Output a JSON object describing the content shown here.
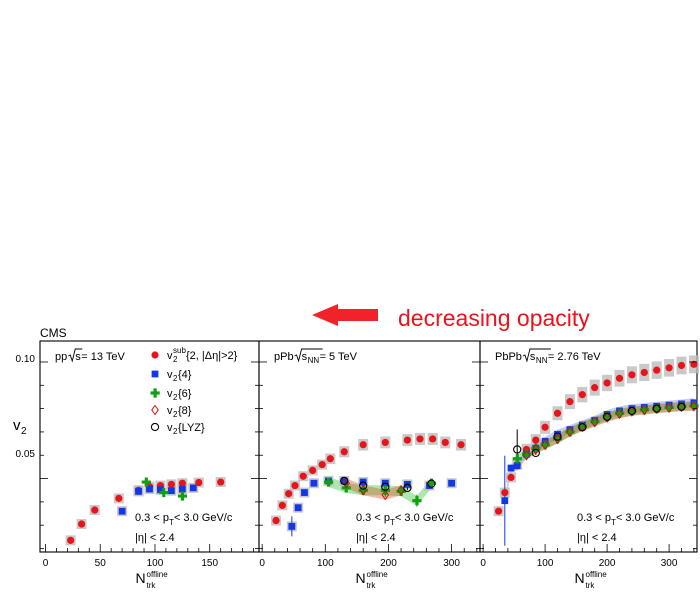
{
  "annotation": {
    "text": "decreasing opacity",
    "arrow_color": "#f2222a"
  },
  "experiment": "CMS",
  "ylabel_main": "v",
  "ylabel_sub": "2",
  "yticks": [
    "0.10",
    "0.05"
  ],
  "xlabel": {
    "main": "N",
    "sup": "offline",
    "sub": "trk"
  },
  "colors": {
    "subevent": "#e8141b",
    "v2_4": "#1437e6",
    "v2_6": "#12a012",
    "v2_8": "#cc1010",
    "lyz": "#000000",
    "syst": "#bbbbbb"
  },
  "legend": {
    "subevent": {
      "v": "v",
      "sub_2": "2",
      "sup": "sub",
      "rest": "{2, |Δη|>2}"
    },
    "v2_4": {
      "v": "v",
      "sub_2": "2",
      "rest": "{4}"
    },
    "v2_6": {
      "v": "v",
      "sub_2": "2",
      "rest": "{6}"
    },
    "v2_8": {
      "v": "v",
      "sub_2": "2",
      "rest": "{8}"
    },
    "lyz": {
      "v": "v",
      "sub_2": "2",
      "rest": "{LYZ}"
    }
  },
  "cuts": {
    "pt": "0.3 < p",
    "pt_sub": "T",
    "pt_rest": " < 3.0 GeV/c",
    "eta": "|η| < 2.4"
  },
  "chart_data": [
    {
      "type": "scatter",
      "system": "pp",
      "energy_label": {
        "pre": "pp ",
        "sqrt": "s",
        "sub": "",
        "post": " = 13 TeV"
      },
      "xlim": [
        -5,
        195
      ],
      "ylim": [
        0.0185,
        0.109
      ],
      "xticks": [
        "0",
        "50",
        "100",
        "150"
      ],
      "xtick_values": [
        0,
        50,
        100,
        150
      ],
      "series": [
        {
          "name": "v2sub{2, |Δη|>2}",
          "marker": "circle",
          "x": [
            23,
            33,
            45,
            67,
            85,
            95,
            105,
            115,
            125,
            140,
            160
          ],
          "y": [
            0.0235,
            0.0305,
            0.0365,
            0.0415,
            0.045,
            0.0465,
            0.047,
            0.0475,
            0.048,
            0.0483,
            0.0485
          ]
        },
        {
          "name": "v2{4}",
          "marker": "square",
          "x": [
            70,
            85,
            95,
            105,
            115,
            125,
            135
          ],
          "y": [
            0.036,
            0.0445,
            0.0455,
            0.0452,
            0.0448,
            0.0455,
            0.046
          ]
        },
        {
          "name": "v2{6}",
          "marker": "cross",
          "x": [
            92,
            108,
            125
          ],
          "y": [
            0.0485,
            0.044,
            0.0425
          ]
        }
      ]
    },
    {
      "type": "scatter",
      "system": "pPb",
      "energy_label": {
        "pre": "pPb ",
        "sqrt": "s",
        "sub": "NN",
        "post": " = 5 TeV"
      },
      "xlim": [
        -5,
        345
      ],
      "ylim": [
        0.0185,
        0.109
      ],
      "xticks": [
        "0",
        "100",
        "200",
        "300"
      ],
      "xtick_values": [
        0,
        100,
        200,
        300
      ],
      "series": [
        {
          "name": "v2sub{2, |Δη|>2}",
          "marker": "circle",
          "x": [
            22,
            32,
            42,
            52,
            65,
            80,
            95,
            108,
            130,
            160,
            195,
            230,
            250,
            270,
            290,
            315
          ],
          "y": [
            0.032,
            0.0385,
            0.0435,
            0.047,
            0.051,
            0.0535,
            0.056,
            0.0585,
            0.0615,
            0.0645,
            0.0655,
            0.0665,
            0.067,
            0.067,
            0.0655,
            0.0645
          ]
        },
        {
          "name": "v2{4}",
          "marker": "square",
          "x": [
            47,
            57,
            67,
            82,
            105,
            130,
            160,
            195,
            230,
            265,
            300
          ],
          "y": [
            0.0295,
            0.0375,
            0.044,
            0.048,
            0.049,
            0.049,
            0.0485,
            0.048,
            0.0475,
            0.047,
            0.048
          ]
        },
        {
          "name": "v2{6}",
          "marker": "cross",
          "x": [
            105,
            133,
            160,
            195,
            220,
            245,
            268
          ],
          "y": [
            0.0485,
            0.046,
            0.045,
            0.045,
            0.0445,
            0.0405,
            0.048
          ]
        },
        {
          "name": "v2{8}",
          "marker": "diamond",
          "x": [
            133,
            160,
            195,
            220
          ],
          "y": [
            0.048,
            0.045,
            0.043,
            0.045
          ]
        },
        {
          "name": "v2{LYZ}",
          "marker": "open-circle",
          "x": [
            130,
            160,
            195,
            230,
            268
          ],
          "y": [
            0.049,
            0.047,
            0.0465,
            0.046,
            0.0478
          ]
        }
      ]
    },
    {
      "type": "scatter",
      "system": "PbPb",
      "energy_label": {
        "pre": "PbPb ",
        "sqrt": "s",
        "sub": "NN",
        "post": " = 2.76 TeV"
      },
      "xlim": [
        -5,
        345
      ],
      "ylim": [
        0.0185,
        0.109
      ],
      "xticks": [
        "0",
        "100",
        "200",
        "300"
      ],
      "xtick_values": [
        0,
        100,
        200,
        300
      ],
      "series": [
        {
          "name": "v2sub{2, |Δη|>2}",
          "marker": "circle",
          "x": [
            25,
            35,
            45,
            55,
            70,
            85,
            100,
            120,
            140,
            160,
            180,
            200,
            220,
            240,
            260,
            280,
            300,
            320,
            340
          ],
          "y": [
            0.036,
            0.044,
            0.0505,
            0.056,
            0.0625,
            0.0665,
            0.072,
            0.078,
            0.083,
            0.086,
            0.089,
            0.091,
            0.093,
            0.0945,
            0.0955,
            0.0965,
            0.0975,
            0.0985,
            0.099
          ]
        },
        {
          "name": "v2{4}",
          "marker": "square",
          "x": [
            35,
            45,
            55,
            70,
            85,
            100,
            120,
            140,
            160,
            180,
            200,
            220,
            240,
            260,
            280,
            300,
            320,
            340
          ],
          "y": [
            0.0405,
            0.0545,
            0.0555,
            0.0605,
            0.063,
            0.066,
            0.069,
            0.071,
            0.073,
            0.075,
            0.0775,
            0.079,
            0.08,
            0.0805,
            0.081,
            0.0815,
            0.082,
            0.0825
          ]
        },
        {
          "name": "v2{6}",
          "marker": "cross",
          "x": [
            55,
            70,
            85,
            100,
            120,
            140,
            160,
            180,
            200,
            220,
            240,
            260,
            280,
            300,
            320,
            340
          ],
          "y": [
            0.0585,
            0.0605,
            0.063,
            0.0645,
            0.067,
            0.07,
            0.0725,
            0.0745,
            0.0765,
            0.078,
            0.079,
            0.0795,
            0.08,
            0.0805,
            0.081,
            0.0812
          ]
        },
        {
          "name": "v2{8}",
          "marker": "diamond",
          "x": [
            70,
            85,
            100,
            120,
            140,
            160,
            180,
            200,
            220,
            240,
            260,
            280,
            300,
            320,
            340
          ],
          "y": [
            0.06,
            0.0625,
            0.0645,
            0.067,
            0.07,
            0.0722,
            0.0742,
            0.0762,
            0.0778,
            0.0788,
            0.0794,
            0.08,
            0.0804,
            0.0808,
            0.081
          ]
        },
        {
          "name": "v2{LYZ}",
          "marker": "open-circle",
          "x": [
            55,
            85,
            120,
            160,
            200,
            240,
            280,
            320
          ],
          "y": [
            0.0625,
            0.061,
            0.068,
            0.072,
            0.0765,
            0.079,
            0.08,
            0.0808
          ]
        }
      ]
    }
  ]
}
